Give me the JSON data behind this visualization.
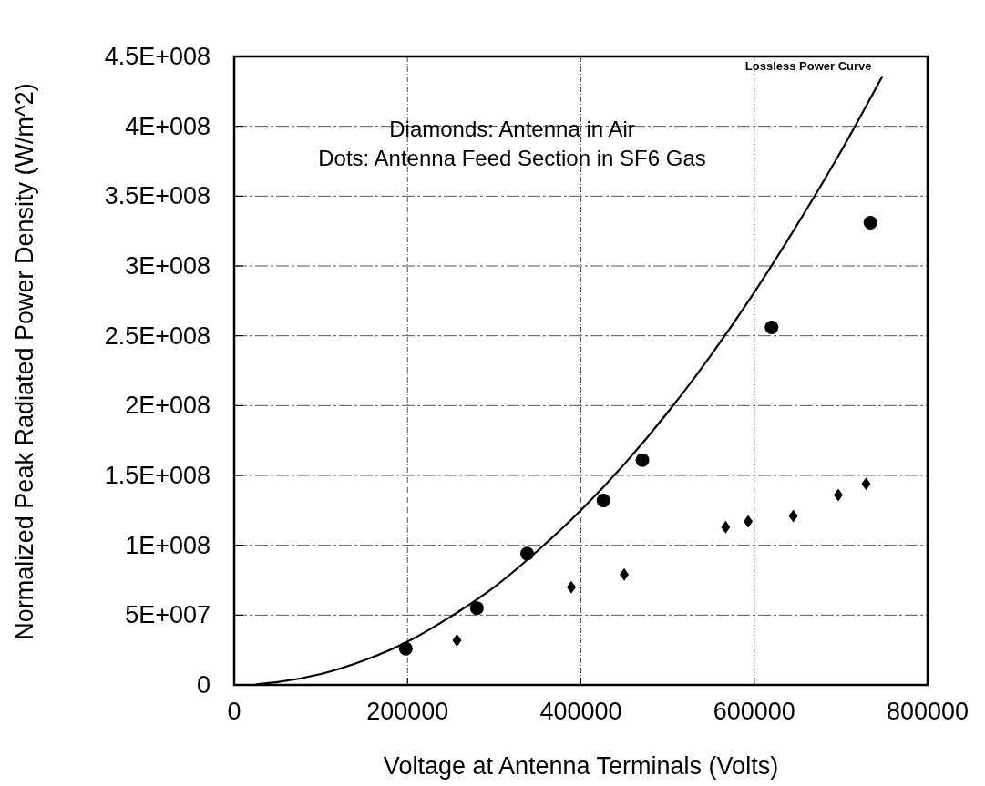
{
  "chart_data": {
    "type": "scatter",
    "xlabel": "Voltage at Antenna Terminals (Volts)",
    "ylabel": "Normalized Peak Radiated Power Density (W/m^2)",
    "xlim": [
      0,
      800000
    ],
    "xticks": [
      0,
      200000,
      400000,
      600000,
      800000
    ],
    "ylim": [
      0,
      450000000
    ],
    "yticks": [
      {
        "value": 0,
        "label": "0"
      },
      {
        "value": 50000000,
        "label": "5E+007"
      },
      {
        "value": 100000000,
        "label": "1E+008"
      },
      {
        "value": 150000000,
        "label": "1.5E+008"
      },
      {
        "value": 200000000,
        "label": "2E+008"
      },
      {
        "value": 250000000,
        "label": "2.5E+008"
      },
      {
        "value": 300000000,
        "label": "3E+008"
      },
      {
        "value": 350000000,
        "label": "3.5E+008"
      },
      {
        "value": 400000000,
        "label": "4E+008"
      },
      {
        "value": 450000000,
        "label": "4.5E+008"
      }
    ],
    "grid": true,
    "legend": false,
    "annotations": [
      "Diamonds: Antenna in Air",
      "Dots: Antenna Feed Section in SF6 Gas"
    ],
    "series": [
      {
        "name": "Lossless Power Curve",
        "type": "line",
        "color": "#000000",
        "marker": "none",
        "line_style": "solid",
        "x": [
          25000,
          50000,
          100000,
          150000,
          200000,
          250000,
          300000,
          350000,
          400000,
          450000,
          500000,
          550000,
          600000,
          650000,
          700000,
          748000
        ],
        "values": [
          500000,
          2000000,
          7800000,
          17600000,
          31000000,
          49000000,
          70000000,
          96000000,
          125000000,
          158000000,
          195000000,
          236000000,
          281000000,
          330000000,
          382000000,
          436000000
        ]
      },
      {
        "color": "#000000",
        "marker": "circle",
        "x": [
          198000,
          280000,
          338000,
          426000,
          471000,
          620000,
          734000
        ],
        "values": [
          26000000,
          55000000,
          94000000,
          132000000,
          161000000,
          256000000,
          331000000
        ]
      },
      {
        "color": "#000000",
        "marker": "diamond",
        "x": [
          257000,
          389000,
          450000,
          567000,
          593000,
          645000,
          697000,
          729000
        ],
        "values": [
          32000000,
          70000000,
          79000000,
          113000000,
          117000000,
          121000000,
          136000000,
          144000000
        ]
      }
    ]
  }
}
